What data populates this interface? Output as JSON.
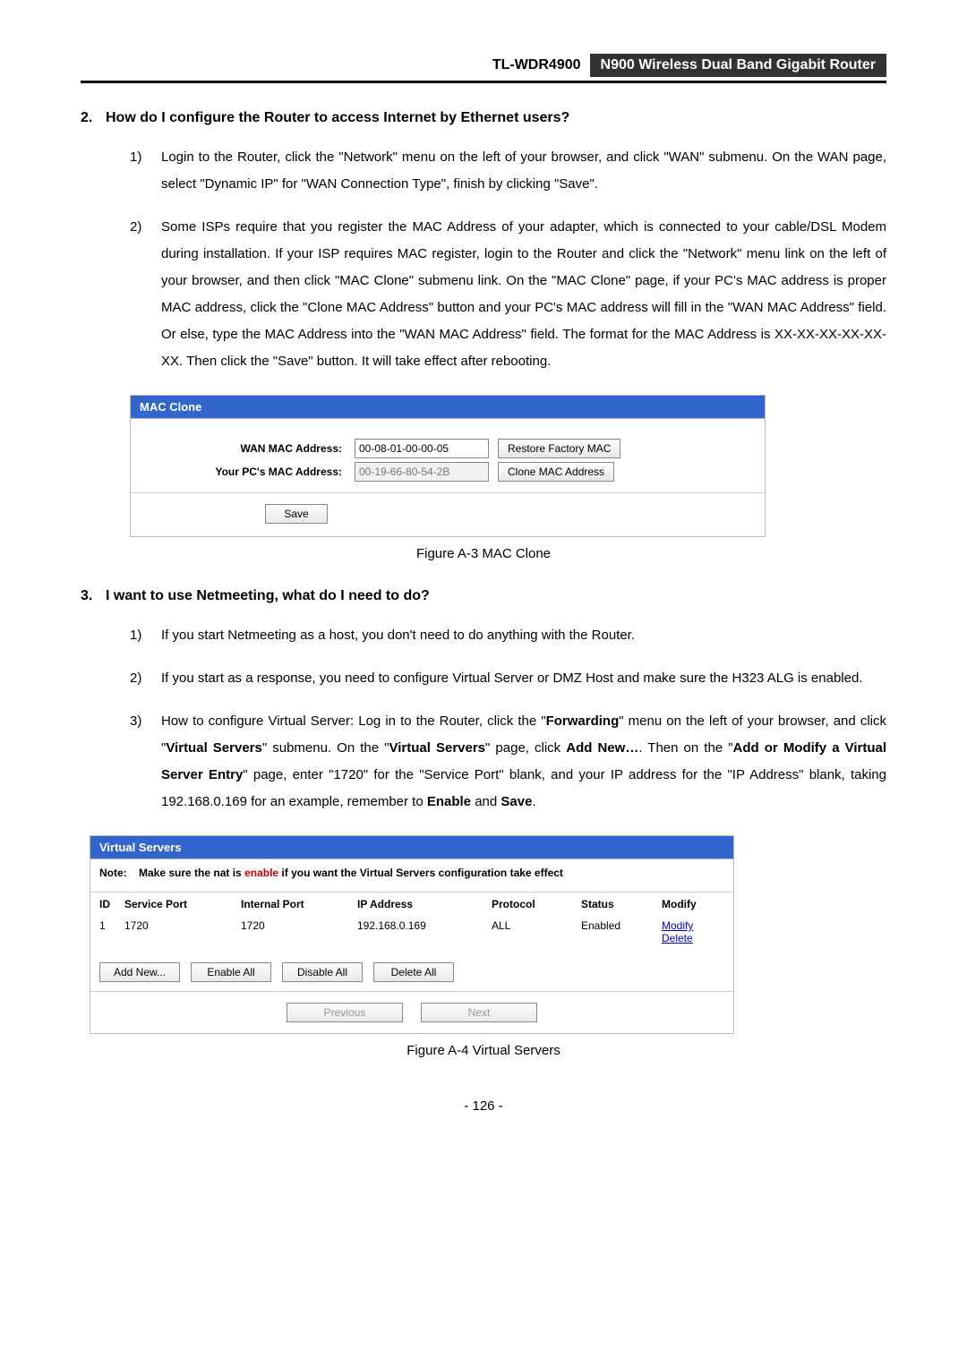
{
  "header": {
    "model": "TL-WDR4900",
    "product": "N900 Wireless Dual Band Gigabit Router"
  },
  "section2": {
    "num": "2.",
    "title": "How do I configure the Router to access Internet by Ethernet users?",
    "step1_num": "1)",
    "step1": "Login to the Router, click the \"Network\" menu on the left of your browser, and click \"WAN\" submenu. On the WAN page, select \"Dynamic IP\" for \"WAN Connection Type\", finish by clicking \"Save\".",
    "step2_num": "2)",
    "step2": "Some ISPs require that you register the MAC Address of your adapter, which is connected to your cable/DSL Modem during installation. If your ISP requires MAC register, login to the Router and click the \"Network\" menu link on the left of your browser, and then click \"MAC Clone\" submenu link. On the \"MAC Clone\" page, if your PC's MAC address is proper MAC address, click the \"Clone MAC Address\" button and your PC's MAC address will fill in the \"WAN MAC Address\" field. Or else, type the MAC Address into the \"WAN MAC Address\" field. The format for the MAC Address is XX-XX-XX-XX-XX-XX. Then click the \"Save\" button. It will take effect after rebooting."
  },
  "macclone": {
    "title": "MAC Clone",
    "wan_label": "WAN MAC Address:",
    "wan_value": "00-08-01-00-00-05",
    "restore_btn": "Restore Factory MAC",
    "pc_label": "Your PC's MAC Address:",
    "pc_value": "00-19-66-80-54-2B",
    "clone_btn": "Clone MAC Address",
    "save_btn": "Save",
    "caption": "Figure A-3 MAC Clone"
  },
  "section3": {
    "num": "3.",
    "title": "I want to use Netmeeting, what do I need to do?",
    "step1_num": "1)",
    "step1": "If you start Netmeeting as a host, you don't need to do anything with the Router.",
    "step2_num": "2)",
    "step2": "If you start as a response, you need to configure Virtual Server or DMZ Host and make sure the H323 ALG is enabled.",
    "step3_num": "3)",
    "step3_a": "How to configure Virtual Server: Log in to the Router, click the \"",
    "step3_b": "Forwarding",
    "step3_c": "\" menu on the left of your browser, and click \"",
    "step3_d": "Virtual Servers",
    "step3_e": "\" submenu. On the \"",
    "step3_f": "Virtual Servers",
    "step3_g": "\" page, click ",
    "step3_h": "Add New…",
    "step3_i": ". Then on the \"",
    "step3_j": "Add or Modify a Virtual Server Entry",
    "step3_k": "\" page, enter \"1720\" for the \"Service Port\" blank, and your IP address for the \"IP Address\" blank, taking 192.168.0.169 for an example, remember to ",
    "step3_l": "Enable",
    "step3_m": " and ",
    "step3_n": "Save",
    "step3_o": "."
  },
  "vs": {
    "title": "Virtual Servers",
    "note_label": "Note:",
    "note_a": "Make sure the nat is ",
    "note_enable": "enable",
    "note_b": " if you want the Virtual Servers configuration take effect",
    "h_id": "ID",
    "h_sp": "Service Port",
    "h_ip": "Internal Port",
    "h_addr": "IP Address",
    "h_proto": "Protocol",
    "h_status": "Status",
    "h_mod": "Modify",
    "r_id": "1",
    "r_sp": "1720",
    "r_ip": "1720",
    "r_addr": "192.168.0.169",
    "r_proto": "ALL",
    "r_status": "Enabled",
    "r_modify": "Modify",
    "r_delete": "Delete",
    "btn_add": "Add New...",
    "btn_enable": "Enable All",
    "btn_disable": "Disable All",
    "btn_delete": "Delete All",
    "btn_prev": "Previous",
    "btn_next": "Next",
    "caption": "Figure A-4 Virtual Servers"
  },
  "page_num": "- 126 -"
}
